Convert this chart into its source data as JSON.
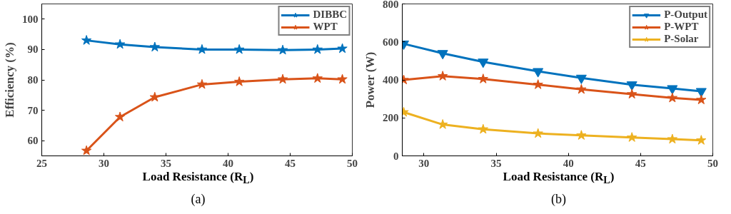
{
  "chart_data": [
    {
      "type": "line",
      "xlabel": "Load Resistance (R$_{L}$)",
      "ylabel": "Efficiency (%)",
      "annotations": [
        "(a)"
      ],
      "x": [
        28.6,
        31.3,
        34.1,
        37.9,
        40.9,
        44.4,
        47.2,
        49.2
      ],
      "xlim": [
        25,
        50
      ],
      "xticks": [
        25,
        30,
        35,
        40,
        45,
        50
      ],
      "ylim": [
        55,
        105
      ],
      "yticks": [
        60,
        70,
        80,
        90,
        100
      ],
      "legend": "top right",
      "grid": false,
      "marker": "star",
      "line_style": "solid",
      "series": [
        {
          "name": "DIBBC",
          "color": "#0072bd",
          "values": [
            93,
            91.7,
            90.8,
            90,
            90,
            89.8,
            90,
            90.3
          ]
        },
        {
          "name": "WPT",
          "color": "#d95319",
          "values": [
            56.7,
            67.8,
            74.3,
            78.5,
            79.4,
            80.2,
            80.5,
            80.2
          ]
        }
      ]
    },
    {
      "type": "line",
      "xlabel": "Load Resistance (R$_{L}$)",
      "ylabel": "Power (W)",
      "annotations": [
        "(b)"
      ],
      "x": [
        28.6,
        31.3,
        34.1,
        37.9,
        40.9,
        44.4,
        47.2,
        49.2
      ],
      "xlim": [
        28.5,
        50
      ],
      "xticks": [
        30,
        35,
        40,
        45,
        50
      ],
      "ylim": [
        0,
        800
      ],
      "yticks": [
        0,
        200,
        400,
        600,
        800
      ],
      "legend": "top right",
      "grid": false,
      "marker": "star",
      "line_style": "solid",
      "series": [
        {
          "name": "P-Output",
          "color": "#0072bd",
          "marker": "triangle",
          "values": [
            590,
            540,
            495,
            445,
            410,
            375,
            355,
            340
          ]
        },
        {
          "name": "P-WPT",
          "color": "#d95319",
          "values": [
            400,
            420,
            405,
            375,
            350,
            325,
            305,
            295
          ]
        },
        {
          "name": "P-Solar",
          "color": "#edb120",
          "values": [
            230,
            165,
            140,
            118,
            108,
            97,
            88,
            82
          ]
        }
      ]
    }
  ]
}
